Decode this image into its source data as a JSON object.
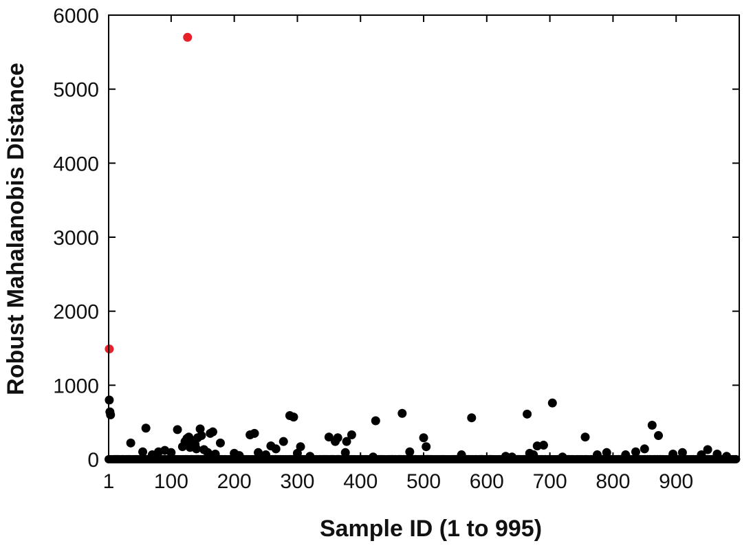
{
  "chart_data": {
    "type": "scatter",
    "title": "",
    "xlabel": "Sample ID (1 to 995)",
    "ylabel": "Robust Mahalanobis Distance",
    "xlim": [
      1,
      1000
    ],
    "ylim": [
      0,
      6000
    ],
    "x_ticks": [
      1,
      100,
      200,
      300,
      400,
      500,
      600,
      700,
      800,
      900
    ],
    "y_ticks": [
      0,
      1000,
      2000,
      3000,
      4000,
      5000,
      6000
    ],
    "grid": false,
    "legend": "none",
    "colors": {
      "normal": "#000000",
      "outlier": "#e8202a"
    },
    "series": [
      {
        "role": "normal",
        "points": [
          [
            2,
            800
          ],
          [
            3,
            640
          ],
          [
            4,
            600
          ],
          [
            36,
            220
          ],
          [
            55,
            100
          ],
          [
            60,
            420
          ],
          [
            70,
            60
          ],
          [
            80,
            100
          ],
          [
            90,
            120
          ],
          [
            100,
            90
          ],
          [
            110,
            400
          ],
          [
            118,
            170
          ],
          [
            122,
            240
          ],
          [
            125,
            280
          ],
          [
            128,
            300
          ],
          [
            130,
            160
          ],
          [
            132,
            220
          ],
          [
            134,
            250
          ],
          [
            138,
            200
          ],
          [
            140,
            140
          ],
          [
            142,
            290
          ],
          [
            146,
            410
          ],
          [
            148,
            320
          ],
          [
            152,
            130
          ],
          [
            158,
            90
          ],
          [
            162,
            350
          ],
          [
            166,
            370
          ],
          [
            170,
            70
          ],
          [
            178,
            220
          ],
          [
            200,
            80
          ],
          [
            208,
            50
          ],
          [
            225,
            330
          ],
          [
            232,
            350
          ],
          [
            238,
            90
          ],
          [
            250,
            60
          ],
          [
            258,
            180
          ],
          [
            266,
            140
          ],
          [
            278,
            240
          ],
          [
            288,
            590
          ],
          [
            294,
            570
          ],
          [
            300,
            80
          ],
          [
            305,
            170
          ],
          [
            320,
            40
          ],
          [
            350,
            300
          ],
          [
            360,
            240
          ],
          [
            364,
            290
          ],
          [
            376,
            90
          ],
          [
            378,
            240
          ],
          [
            386,
            330
          ],
          [
            420,
            30
          ],
          [
            424,
            520
          ],
          [
            466,
            620
          ],
          [
            478,
            100
          ],
          [
            500,
            290
          ],
          [
            504,
            170
          ],
          [
            560,
            60
          ],
          [
            576,
            560
          ],
          [
            630,
            40
          ],
          [
            640,
            30
          ],
          [
            664,
            610
          ],
          [
            668,
            80
          ],
          [
            674,
            60
          ],
          [
            680,
            180
          ],
          [
            690,
            190
          ],
          [
            704,
            760
          ],
          [
            720,
            30
          ],
          [
            756,
            300
          ],
          [
            775,
            60
          ],
          [
            790,
            90
          ],
          [
            820,
            60
          ],
          [
            836,
            100
          ],
          [
            850,
            140
          ],
          [
            862,
            460
          ],
          [
            872,
            320
          ],
          [
            895,
            70
          ],
          [
            910,
            90
          ],
          [
            940,
            60
          ],
          [
            950,
            130
          ],
          [
            965,
            70
          ],
          [
            980,
            40
          ]
        ],
        "baseline_band": [
          0,
          45
        ]
      },
      {
        "role": "outlier",
        "points": [
          [
            2,
            1490
          ],
          [
            126,
            5700
          ]
        ]
      }
    ]
  }
}
